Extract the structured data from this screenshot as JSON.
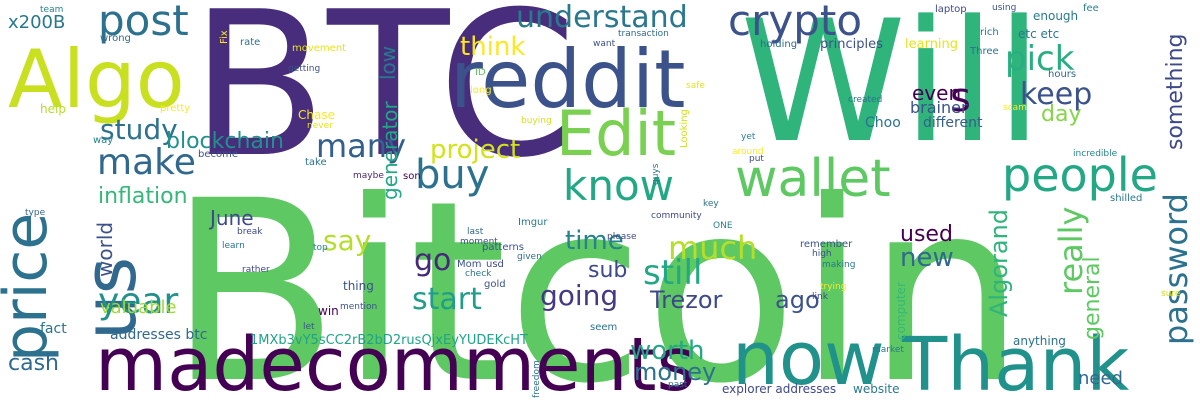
{
  "words": [
    {
      "text": "Bitcoin",
      "color": "#5ec962"
    },
    {
      "text": "BTC",
      "color": "#472d7b"
    },
    {
      "text": "Will",
      "color": "#2fb47c"
    },
    {
      "text": "reddit",
      "color": "#3b528b"
    },
    {
      "text": "Algo",
      "color": "#c8e020"
    },
    {
      "text": "madecomments",
      "color": "#440154"
    },
    {
      "text": "now",
      "color": "#21918c"
    },
    {
      "text": "Thank",
      "color": "#21918c"
    },
    {
      "text": "price",
      "color": "#2c728e"
    },
    {
      "text": "us",
      "color": "#31688e"
    },
    {
      "text": "Edit",
      "color": "#7ad151"
    },
    {
      "text": "wallet",
      "color": "#5ec962"
    },
    {
      "text": "crypto",
      "color": "#3b528b"
    },
    {
      "text": "people",
      "color": "#22a884"
    },
    {
      "text": "post",
      "color": "#2c728e"
    },
    {
      "text": "know",
      "color": "#22a884"
    },
    {
      "text": "buy",
      "color": "#2c728e"
    },
    {
      "text": "make",
      "color": "#31688e"
    },
    {
      "text": "year",
      "color": "#21918c"
    },
    {
      "text": "understand",
      "color": "#2a788e"
    },
    {
      "text": "password",
      "color": "#2c728e"
    },
    {
      "text": "pick",
      "color": "#28ae80"
    },
    {
      "text": "keep",
      "color": "#3b528b"
    },
    {
      "text": "s",
      "color": "#440154"
    },
    {
      "text": "study",
      "color": "#2c728e"
    },
    {
      "text": "blockchain",
      "color": "#21918c"
    },
    {
      "text": "many",
      "color": "#355f8d"
    },
    {
      "text": "project",
      "color": "#d2e21b"
    },
    {
      "text": "think",
      "color": "#fde725"
    },
    {
      "text": "inflation",
      "color": "#35b779"
    },
    {
      "text": "much",
      "color": "#b5de2b"
    },
    {
      "text": "still",
      "color": "#22a884"
    },
    {
      "text": "going",
      "color": "#443a83"
    },
    {
      "text": "start",
      "color": "#1f9e89"
    },
    {
      "text": "go",
      "color": "#482878"
    },
    {
      "text": "say",
      "color": "#b5de2b"
    },
    {
      "text": "time",
      "color": "#26828e"
    },
    {
      "text": "worth",
      "color": "#22a884"
    },
    {
      "text": "money",
      "color": "#2c728e"
    },
    {
      "text": "Trezor",
      "color": "#3e4989"
    },
    {
      "text": "ago",
      "color": "#3b528b"
    },
    {
      "text": "used",
      "color": "#440154"
    },
    {
      "text": "new",
      "color": "#31688e"
    },
    {
      "text": "really",
      "color": "#5ec962"
    },
    {
      "text": "Algorand",
      "color": "#2fb47c"
    },
    {
      "text": "general",
      "color": "#5ec962"
    },
    {
      "text": "something",
      "color": "#3e4989"
    },
    {
      "text": "Choo",
      "color": "#2c728e"
    },
    {
      "text": "day",
      "color": "#86d549"
    },
    {
      "text": "different",
      "color": "#355f8d"
    },
    {
      "text": "x200B",
      "color": "#2a788e"
    },
    {
      "text": "world",
      "color": "#3b528b"
    },
    {
      "text": "June",
      "color": "#3e4989"
    },
    {
      "text": "generator",
      "color": "#22a884"
    },
    {
      "text": "low",
      "color": "#2a788e"
    },
    {
      "text": "even",
      "color": "#440154"
    },
    {
      "text": "brainer",
      "color": "#3b528b"
    },
    {
      "text": "valuable",
      "color": "#a0da39"
    },
    {
      "text": "cash",
      "color": "#31688e"
    },
    {
      "text": "sub",
      "color": "#3e4989"
    },
    {
      "text": "need",
      "color": "#31688e"
    },
    {
      "text": "fact",
      "color": "#2c728e"
    },
    {
      "text": "addresses btc",
      "color": "#31688e"
    },
    {
      "text": "1MXb3vY5sCC2rB2bD2rusQjxEyYUDEKcHT",
      "color": "#20a386"
    },
    {
      "text": "explorer addresses",
      "color": "#3e4989"
    },
    {
      "text": "website",
      "color": "#2a788e"
    },
    {
      "text": "anything",
      "color": "#2c728e"
    },
    {
      "text": "ID",
      "color": "#5ec962"
    },
    {
      "text": "long",
      "color": "#fde725"
    },
    {
      "text": "principles",
      "color": "#3b528b"
    },
    {
      "text": "learning",
      "color": "#e5e419"
    },
    {
      "text": "holding",
      "color": "#31688e"
    },
    {
      "text": "enough",
      "color": "#2a788e"
    },
    {
      "text": "hours",
      "color": "#31688e"
    },
    {
      "text": "etc etc",
      "color": "#2a788e"
    },
    {
      "text": "Three",
      "color": "#2c728e"
    },
    {
      "text": "rich",
      "color": "#2a788e"
    },
    {
      "text": "laptop",
      "color": "#3e4989"
    },
    {
      "text": "using",
      "color": "#3b528b"
    },
    {
      "text": "fee",
      "color": "#26828e"
    },
    {
      "text": "team",
      "color": "#26828e"
    },
    {
      "text": "wrong",
      "color": "#31688e"
    },
    {
      "text": "rate",
      "color": "#2c728e"
    },
    {
      "text": "movement",
      "color": "#e5e419"
    },
    {
      "text": "getting",
      "color": "#3b528b"
    },
    {
      "text": "help",
      "color": "#b5de2b"
    },
    {
      "text": "pretty",
      "color": "#fde725"
    },
    {
      "text": "way",
      "color": "#26828e"
    },
    {
      "text": "Chase",
      "color": "#fde725"
    },
    {
      "text": "never",
      "color": "#e5e419"
    },
    {
      "text": "become",
      "color": "#3b528b"
    },
    {
      "text": "take",
      "color": "#2c728e"
    },
    {
      "text": "maybe",
      "color": "#482878"
    },
    {
      "text": "son",
      "color": "#440154"
    },
    {
      "text": "transaction",
      "color": "#31688e"
    },
    {
      "text": "want",
      "color": "#3b528b"
    },
    {
      "text": "safe",
      "color": "#e5e419"
    },
    {
      "text": "buying",
      "color": "#d2e21b"
    },
    {
      "text": "created",
      "color": "#2c728e"
    },
    {
      "text": "scam",
      "color": "#fde725"
    },
    {
      "text": "yet",
      "color": "#26828e"
    },
    {
      "text": "around",
      "color": "#fde725"
    },
    {
      "text": "put",
      "color": "#3e4989"
    },
    {
      "text": "incredible",
      "color": "#26828e"
    },
    {
      "text": "shilled",
      "color": "#2a788e"
    },
    {
      "text": "type",
      "color": "#31688e"
    },
    {
      "text": "learn",
      "color": "#2c728e"
    },
    {
      "text": "break",
      "color": "#3e4989"
    },
    {
      "text": "top",
      "color": "#26828e"
    },
    {
      "text": "last",
      "color": "#31688e"
    },
    {
      "text": "moment",
      "color": "#3b528b"
    },
    {
      "text": "please",
      "color": "#3e4989"
    },
    {
      "text": "ONE",
      "color": "#26828e"
    },
    {
      "text": "Imgur",
      "color": "#2a788e"
    },
    {
      "text": "patterns",
      "color": "#3b528b"
    },
    {
      "text": "usd",
      "color": "#3e4989"
    },
    {
      "text": "given",
      "color": "#2c728e"
    },
    {
      "text": "Mom",
      "color": "#3b528b"
    },
    {
      "text": "gold",
      "color": "#3b528b"
    },
    {
      "text": "check",
      "color": "#2c728e"
    },
    {
      "text": "thing",
      "color": "#3b528b"
    },
    {
      "text": "rather",
      "color": "#3e4989"
    },
    {
      "text": "win",
      "color": "#440154"
    },
    {
      "text": "mention",
      "color": "#3b528b"
    },
    {
      "text": "let",
      "color": "#3b528b"
    },
    {
      "text": "seem",
      "color": "#2c728e"
    },
    {
      "text": "remember",
      "color": "#3b528b"
    },
    {
      "text": "high",
      "color": "#3b528b"
    },
    {
      "text": "making",
      "color": "#2a788e"
    },
    {
      "text": "trying",
      "color": "#fde725"
    },
    {
      "text": "link",
      "color": "#3e4989"
    },
    {
      "text": "computer",
      "color": "#35b779"
    },
    {
      "text": "market",
      "color": "#2a788e"
    },
    {
      "text": "past",
      "color": "#2c728e"
    },
    {
      "text": "Looking",
      "color": "#d2e21b"
    },
    {
      "text": "guys",
      "color": "#2c728e"
    },
    {
      "text": "key",
      "color": "#2c728e"
    },
    {
      "text": "community",
      "color": "#3e4989"
    },
    {
      "text": "sure",
      "color": "#d2e21b"
    },
    {
      "text": "freedom",
      "color": "#2c728e"
    },
    {
      "text": "Fix",
      "color": "#fde725"
    }
  ]
}
